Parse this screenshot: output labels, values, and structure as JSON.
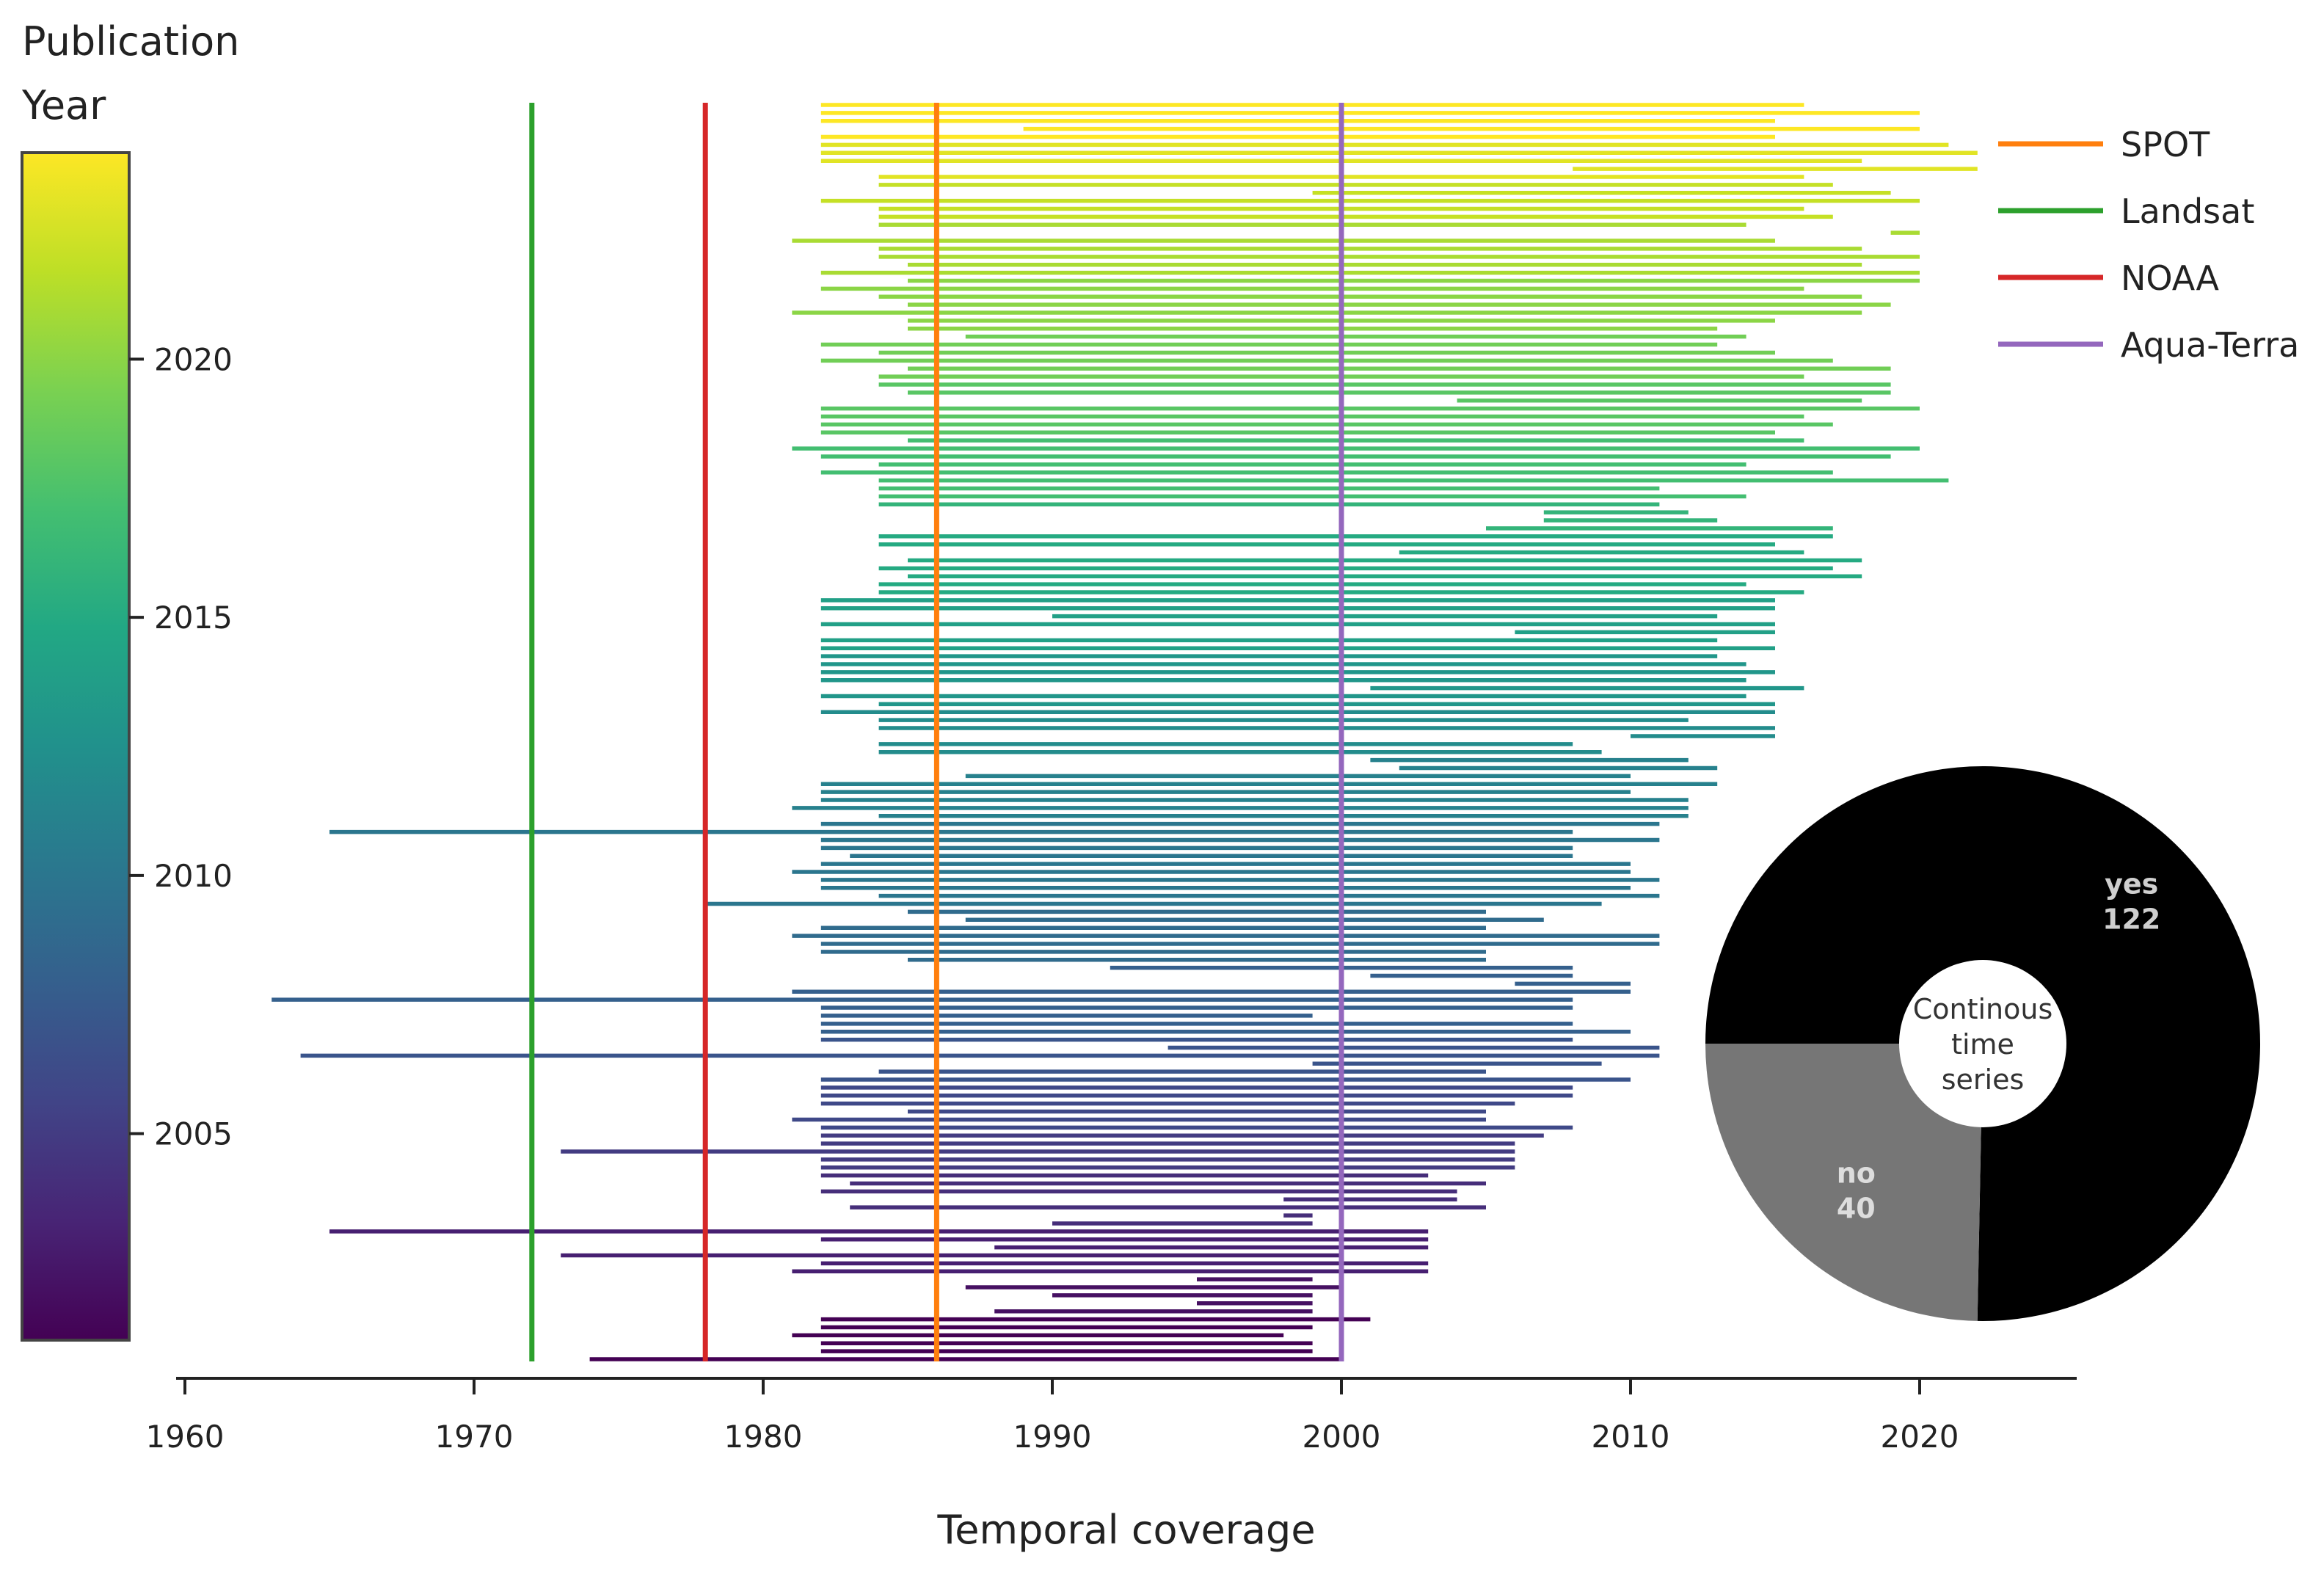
{
  "chart_data": {
    "type": "bar",
    "subtype": "horizontal-range",
    "title": "",
    "xlabel": "Temporal coverage",
    "ylabel": "",
    "xlim": [
      1960,
      2025
    ],
    "x_ticks": [
      1960,
      1970,
      1980,
      1990,
      2000,
      2010,
      2020
    ],
    "x_tick_labels": [
      "1960",
      "1970",
      "1980",
      "1990",
      "2000",
      "2010",
      "2020"
    ],
    "colorbar": {
      "title_line1": "Publication",
      "title_line2": "Year",
      "range": [
        2001,
        2024
      ],
      "ticks": [
        2005,
        2010,
        2015,
        2020
      ],
      "tick_labels": [
        "2005",
        "2010",
        "2015",
        "2020"
      ],
      "colormap": "viridis"
    },
    "reference_lines": [
      {
        "name": "SPOT",
        "year": 1986,
        "color": "#ff7f0e"
      },
      {
        "name": "Landsat",
        "year": 1972,
        "color": "#2ca02c"
      },
      {
        "name": "NOAA",
        "year": 1978,
        "color": "#d62728"
      },
      {
        "name": "Aqua-Terra",
        "year": 2000,
        "color": "#9467bd"
      }
    ],
    "series": [
      {
        "name": "study coverage (start, end, publication year)",
        "ranges": [
          [
            1974,
            2000,
            2001
          ],
          [
            1982,
            1999,
            2001
          ],
          [
            1982,
            1999,
            2001
          ],
          [
            1981,
            1998,
            2001
          ],
          [
            1982,
            1999,
            2001
          ],
          [
            1982,
            2001,
            2001
          ],
          [
            1988,
            1999,
            2002
          ],
          [
            1995,
            1999,
            2002
          ],
          [
            1990,
            1999,
            2002
          ],
          [
            1987,
            2000,
            2002
          ],
          [
            1995,
            1999,
            2002
          ],
          [
            1981,
            2003,
            2003
          ],
          [
            1982,
            2003,
            2003
          ],
          [
            1973,
            2000,
            2003
          ],
          [
            1988,
            2003,
            2003
          ],
          [
            1982,
            2003,
            2003
          ],
          [
            1965,
            2003,
            2003
          ],
          [
            1990,
            1999,
            2004
          ],
          [
            1998,
            1999,
            2004
          ],
          [
            1983,
            2005,
            2004
          ],
          [
            1998,
            2004,
            2004
          ],
          [
            1982,
            2004,
            2004
          ],
          [
            1983,
            2005,
            2004
          ],
          [
            1982,
            2003,
            2004
          ],
          [
            1982,
            2006,
            2005
          ],
          [
            1982,
            2006,
            2005
          ],
          [
            1973,
            2006,
            2005
          ],
          [
            1982,
            2006,
            2005
          ],
          [
            1982,
            2007,
            2005
          ],
          [
            1982,
            2008,
            2006
          ],
          [
            1981,
            2005,
            2006
          ],
          [
            1985,
            2005,
            2006
          ],
          [
            1982,
            2006,
            2006
          ],
          [
            1982,
            2008,
            2006
          ],
          [
            1982,
            2008,
            2006
          ],
          [
            1982,
            2010,
            2007
          ],
          [
            1984,
            2005,
            2007
          ],
          [
            1999,
            2009,
            2007
          ],
          [
            1964,
            2011,
            2007
          ],
          [
            1994,
            2011,
            2007
          ],
          [
            1982,
            2008,
            2007
          ],
          [
            1982,
            2010,
            2008
          ],
          [
            1982,
            2008,
            2008
          ],
          [
            1982,
            1999,
            2008
          ],
          [
            1982,
            2008,
            2008
          ],
          [
            1963,
            2008,
            2008
          ],
          [
            1981,
            2010,
            2008
          ],
          [
            2006,
            2010,
            2008
          ],
          [
            2001,
            2008,
            2008
          ],
          [
            1992,
            2008,
            2008
          ],
          [
            1985,
            2005,
            2009
          ],
          [
            1982,
            2005,
            2009
          ],
          [
            1982,
            2011,
            2009
          ],
          [
            1981,
            2011,
            2009
          ],
          [
            1982,
            2005,
            2009
          ],
          [
            1987,
            2007,
            2009
          ],
          [
            1985,
            2005,
            2009
          ],
          [
            1978,
            2009,
            2010
          ],
          [
            1984,
            2011,
            2010
          ],
          [
            1982,
            2010,
            2010
          ],
          [
            1982,
            2011,
            2010
          ],
          [
            1981,
            2010,
            2010
          ],
          [
            1982,
            2010,
            2010
          ],
          [
            1983,
            2008,
            2010
          ],
          [
            1982,
            2008,
            2010
          ],
          [
            1982,
            2011,
            2010
          ],
          [
            1965,
            2008,
            2010
          ],
          [
            1982,
            2011,
            2010
          ],
          [
            1984,
            2012,
            2011
          ],
          [
            1981,
            2012,
            2011
          ],
          [
            1982,
            2012,
            2011
          ],
          [
            1982,
            2010,
            2011
          ],
          [
            1982,
            2013,
            2011
          ],
          [
            1987,
            2010,
            2011
          ],
          [
            2002,
            2013,
            2011
          ],
          [
            2001,
            2012,
            2011
          ],
          [
            1984,
            2009,
            2012
          ],
          [
            1984,
            2008,
            2012
          ],
          [
            2010,
            2015,
            2012
          ],
          [
            1984,
            2015,
            2012
          ],
          [
            1984,
            2012,
            2012
          ],
          [
            1982,
            2015,
            2012
          ],
          [
            1984,
            2015,
            2013
          ],
          [
            1982,
            2014,
            2013
          ],
          [
            2001,
            2016,
            2013
          ],
          [
            1982,
            2014,
            2013
          ],
          [
            1982,
            2015,
            2013
          ],
          [
            1982,
            2014,
            2013
          ],
          [
            1982,
            2013,
            2013
          ],
          [
            1982,
            2015,
            2014
          ],
          [
            1982,
            2013,
            2014
          ],
          [
            2006,
            2015,
            2014
          ],
          [
            1982,
            2015,
            2014
          ],
          [
            1990,
            2013,
            2014
          ],
          [
            1982,
            2015,
            2014
          ],
          [
            1982,
            2015,
            2014
          ],
          [
            1984,
            2016,
            2015
          ],
          [
            1984,
            2014,
            2015
          ],
          [
            1985,
            2018,
            2015
          ],
          [
            1984,
            2017,
            2015
          ],
          [
            1985,
            2018,
            2015
          ],
          [
            2002,
            2016,
            2015
          ],
          [
            1984,
            2015,
            2015
          ],
          [
            1984,
            2017,
            2015
          ],
          [
            2005,
            2017,
            2016
          ],
          [
            2007,
            2013,
            2016
          ],
          [
            2007,
            2012,
            2016
          ],
          [
            1984,
            2011,
            2016
          ],
          [
            1984,
            2014,
            2017
          ],
          [
            1984,
            2011,
            2017
          ],
          [
            1984,
            2021,
            2017
          ],
          [
            1982,
            2017,
            2017
          ],
          [
            1984,
            2014,
            2017
          ],
          [
            1982,
            2019,
            2017
          ],
          [
            1981,
            2020,
            2017
          ],
          [
            1985,
            2016,
            2017
          ],
          [
            1982,
            2015,
            2018
          ],
          [
            1982,
            2017,
            2018
          ],
          [
            1982,
            2016,
            2018
          ],
          [
            1982,
            2020,
            2018
          ],
          [
            2004,
            2018,
            2018
          ],
          [
            1985,
            2019,
            2018
          ],
          [
            1984,
            2019,
            2018
          ],
          [
            1984,
            2016,
            2019
          ],
          [
            1985,
            2019,
            2019
          ],
          [
            1982,
            2017,
            2019
          ],
          [
            1984,
            2015,
            2019
          ],
          [
            1982,
            2013,
            2019
          ],
          [
            1987,
            2014,
            2019
          ],
          [
            1985,
            2013,
            2020
          ],
          [
            1985,
            2015,
            2020
          ],
          [
            1981,
            2018,
            2020
          ],
          [
            1985,
            2019,
            2020
          ],
          [
            1984,
            2018,
            2020
          ],
          [
            1982,
            2016,
            2020
          ],
          [
            1985,
            2020,
            2020
          ],
          [
            1982,
            2020,
            2021
          ],
          [
            1985,
            2018,
            2021
          ],
          [
            1984,
            2020,
            2021
          ],
          [
            1984,
            2018,
            2021
          ],
          [
            1981,
            2015,
            2021
          ],
          [
            2019,
            2020,
            2021
          ],
          [
            1984,
            2014,
            2021
          ],
          [
            1984,
            2017,
            2022
          ],
          [
            1984,
            2016,
            2022
          ],
          [
            1982,
            2020,
            2022
          ],
          [
            1999,
            2019,
            2022
          ],
          [
            1984,
            2017,
            2022
          ],
          [
            1984,
            2016,
            2023
          ],
          [
            2008,
            2022,
            2023
          ],
          [
            1982,
            2018,
            2023
          ],
          [
            1982,
            2022,
            2023
          ],
          [
            1982,
            2021,
            2023
          ],
          [
            1982,
            2015,
            2024
          ],
          [
            1989,
            2020,
            2024
          ],
          [
            1982,
            2015,
            2024
          ],
          [
            1982,
            2020,
            2024
          ],
          [
            1982,
            2016,
            2024
          ]
        ]
      }
    ],
    "inset_pie": {
      "type": "pie",
      "center_label": "Continous time series",
      "center_label_lines": [
        "Continous",
        "time",
        "series"
      ],
      "slices": [
        {
          "label": "yes",
          "value": 122,
          "color": "#000000",
          "text_color": "#cfcfcf"
        },
        {
          "label": "no",
          "value": 40,
          "color": "#767676",
          "text_color": "#dddddd"
        }
      ]
    }
  },
  "colors": {
    "axis": "#222222",
    "colorbar_border": "#444444"
  }
}
